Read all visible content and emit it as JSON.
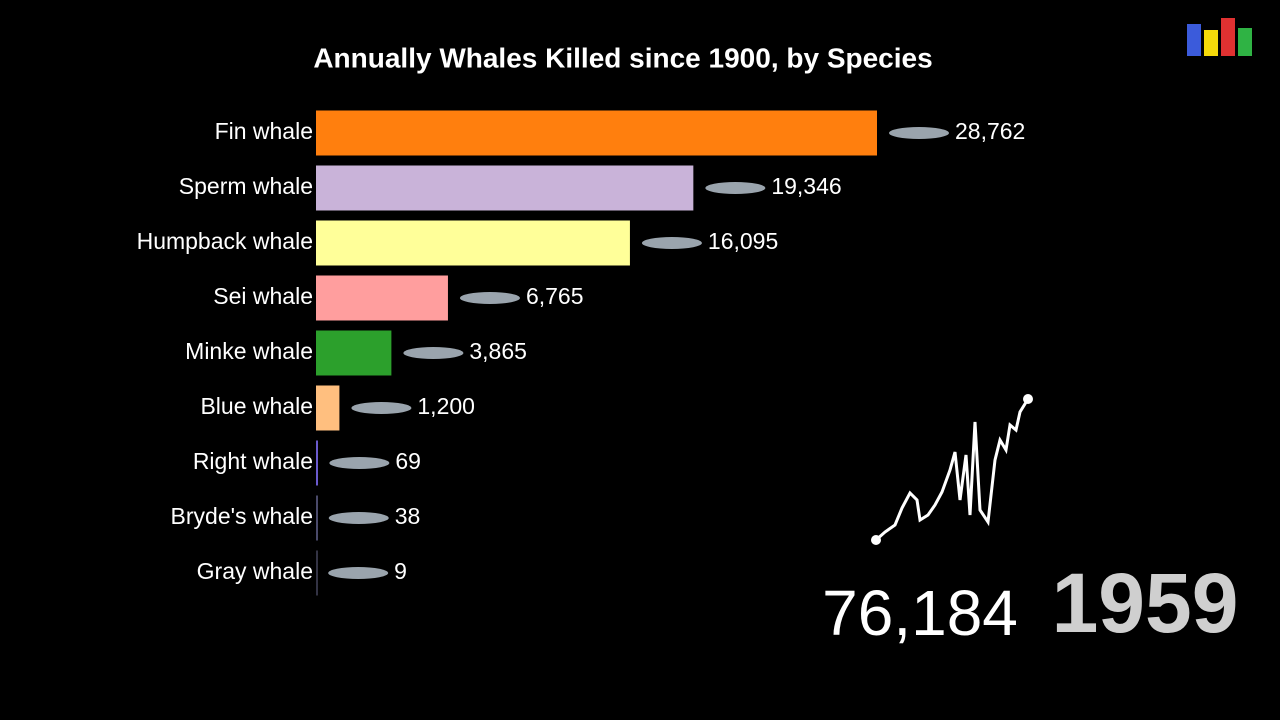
{
  "chart_data": {
    "type": "bar",
    "orientation": "horizontal",
    "title": "Annually Whales Killed since 1900, by Species",
    "categories": [
      "Fin whale",
      "Sperm whale",
      "Humpback whale",
      "Sei whale",
      "Minke whale",
      "Blue whale",
      "Right whale",
      "Bryde's whale",
      "Gray whale"
    ],
    "values": [
      28762,
      19346,
      16095,
      6765,
      3865,
      1200,
      69,
      38,
      9
    ],
    "value_labels": [
      "28,762",
      "19,346",
      "16,095",
      "6,765",
      "3,865",
      "1,200",
      "69",
      "38",
      "9"
    ],
    "colors": [
      "#ff7f0e",
      "#c9b3d9",
      "#ffff99",
      "#ff9e9e",
      "#2ca02c",
      "#ffbf7f",
      "#6a5acd",
      "#4a4a6a",
      "#333344"
    ],
    "total": {
      "value": 76184,
      "label": "76,184"
    },
    "year": 1959
  }
}
